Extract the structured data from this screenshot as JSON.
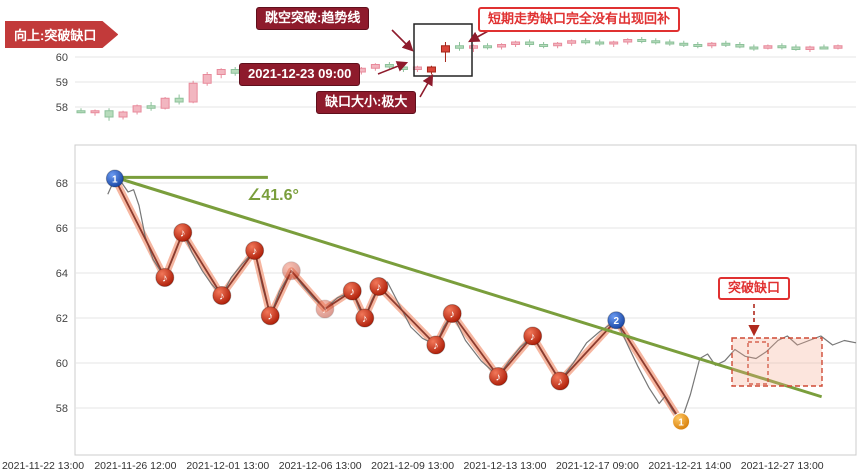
{
  "annotations": {
    "banner": "向上:突破缺口",
    "gap_breakout": "跳空突破:趋势线",
    "no_backfill": "短期走势缺口完全没有出现回补",
    "timestamp": "2021-12-23 09:00",
    "gap_size": "缺口大小:极大",
    "angle": "∠41.6°",
    "breakout": "突破缺口"
  },
  "colors": {
    "up_candle": "#f2b6c0",
    "up_candle_border": "#e88a9b",
    "down_candle": "#b7dcbc",
    "down_candle_border": "#8cc19a",
    "emphasis_candle": "#d9453a",
    "emphasis_border": "#a32317",
    "badge_dark_bg": "#8e1b2c",
    "badge_red": "#e03131",
    "banner_bg": "#c23a3a",
    "trend_green": "#7a9e3c",
    "zigzag_band": "#f5a98f",
    "zigzag_core": "#8c3b2e",
    "price_line": "#777777",
    "grid": "#e4e4e4",
    "axis_text": "#444444",
    "box_stroke": "#222222",
    "gap_zone_stroke": "#cf4a35",
    "gap_zone_fill": "rgba(245,169,143,0.3)"
  },
  "chart_data": [
    {
      "type": "candlestick",
      "title": "",
      "xlabel": "",
      "ylabel": "",
      "y_ticks": [
        60,
        59,
        58
      ],
      "ylim": [
        57.3,
        61.0
      ],
      "grid": true,
      "legend": false,
      "emphasis_candles": [
        25,
        26
      ],
      "candles": [
        [
          57.85,
          57.95,
          57.75,
          57.8
        ],
        [
          57.8,
          57.9,
          57.65,
          57.85
        ],
        [
          57.85,
          57.95,
          57.45,
          57.6
        ],
        [
          57.6,
          57.85,
          57.5,
          57.8
        ],
        [
          57.8,
          58.1,
          57.7,
          58.05
        ],
        [
          58.05,
          58.2,
          57.85,
          57.95
        ],
        [
          57.95,
          58.4,
          57.9,
          58.35
        ],
        [
          58.35,
          58.5,
          58.1,
          58.2
        ],
        [
          58.2,
          59.05,
          58.15,
          58.95
        ],
        [
          58.95,
          59.4,
          58.85,
          59.3
        ],
        [
          59.3,
          59.55,
          59.15,
          59.5
        ],
        [
          59.5,
          59.6,
          59.25,
          59.35
        ],
        [
          59.35,
          59.6,
          59.2,
          59.55
        ],
        [
          59.55,
          59.65,
          59.35,
          59.45
        ],
        [
          59.45,
          59.55,
          59.25,
          59.35
        ],
        [
          59.35,
          59.6,
          59.3,
          59.55
        ],
        [
          59.55,
          59.7,
          59.4,
          59.5
        ],
        [
          59.5,
          59.65,
          59.35,
          59.6
        ],
        [
          59.6,
          59.7,
          59.45,
          59.5
        ],
        [
          59.5,
          59.6,
          59.3,
          59.4
        ],
        [
          59.4,
          59.6,
          59.3,
          59.55
        ],
        [
          59.55,
          59.75,
          59.45,
          59.7
        ],
        [
          59.7,
          59.8,
          59.5,
          59.6
        ],
        [
          59.6,
          59.7,
          59.4,
          59.5
        ],
        [
          59.5,
          59.65,
          59.4,
          59.6
        ],
        [
          59.6,
          59.65,
          59.3,
          59.4
        ],
        [
          60.2,
          60.6,
          59.8,
          60.45
        ],
        [
          60.45,
          60.6,
          60.25,
          60.35
        ],
        [
          60.35,
          60.5,
          60.2,
          60.45
        ],
        [
          60.45,
          60.55,
          60.3,
          60.4
        ],
        [
          60.4,
          60.55,
          60.3,
          60.5
        ],
        [
          60.5,
          60.65,
          60.4,
          60.6
        ],
        [
          60.6,
          60.7,
          60.4,
          60.5
        ],
        [
          60.5,
          60.6,
          60.35,
          60.45
        ],
        [
          60.45,
          60.6,
          60.35,
          60.55
        ],
        [
          60.55,
          60.7,
          60.45,
          60.65
        ],
        [
          60.65,
          60.75,
          60.5,
          60.6
        ],
        [
          60.6,
          60.7,
          60.45,
          60.55
        ],
        [
          60.55,
          60.65,
          60.4,
          60.6
        ],
        [
          60.6,
          60.75,
          60.5,
          60.7
        ],
        [
          60.7,
          60.8,
          60.55,
          60.65
        ],
        [
          60.65,
          60.75,
          60.5,
          60.6
        ],
        [
          60.6,
          60.7,
          60.45,
          60.55
        ],
        [
          60.55,
          60.65,
          60.4,
          60.5
        ],
        [
          60.5,
          60.6,
          60.35,
          60.45
        ],
        [
          60.45,
          60.6,
          60.35,
          60.55
        ],
        [
          60.55,
          60.65,
          60.4,
          60.5
        ],
        [
          60.5,
          60.6,
          60.35,
          60.4
        ],
        [
          60.4,
          60.5,
          60.25,
          60.35
        ],
        [
          60.35,
          60.5,
          60.3,
          60.45
        ],
        [
          60.45,
          60.55,
          60.3,
          60.4
        ],
        [
          60.4,
          60.5,
          60.25,
          60.3
        ],
        [
          60.3,
          60.45,
          60.2,
          60.4
        ],
        [
          60.4,
          60.5,
          60.3,
          60.35
        ],
        [
          60.35,
          60.5,
          60.3,
          60.45
        ]
      ]
    },
    {
      "type": "line",
      "title": "",
      "xlabel": "",
      "ylabel": "",
      "y_ticks": [
        68,
        66,
        64,
        62,
        60,
        58
      ],
      "ylim": [
        56.5,
        69.7
      ],
      "grid": true,
      "legend": false,
      "x_ticks": [
        "2021-11-22 13:00",
        "2021-11-26 12:00",
        "2021-12-01 13:00",
        "2021-12-06 13:00",
        "2021-12-09 13:00",
        "2021-12-13 13:00",
        "2021-12-17 09:00",
        "2021-12-21 14:00",
        "2021-12-27 13:00"
      ],
      "price_line": [
        [
          0.042,
          67.5
        ],
        [
          0.051,
          68.2
        ],
        [
          0.06,
          68.0
        ],
        [
          0.068,
          67.6
        ],
        [
          0.075,
          67.7
        ],
        [
          0.082,
          67.0
        ],
        [
          0.09,
          65.6
        ],
        [
          0.1,
          64.6
        ],
        [
          0.115,
          63.8
        ],
        [
          0.126,
          64.7
        ],
        [
          0.138,
          65.8
        ],
        [
          0.15,
          64.9
        ],
        [
          0.163,
          64.1
        ],
        [
          0.175,
          63.5
        ],
        [
          0.188,
          63.0
        ],
        [
          0.2,
          63.8
        ],
        [
          0.214,
          64.4
        ],
        [
          0.23,
          65.0
        ],
        [
          0.24,
          63.4
        ],
        [
          0.25,
          62.1
        ],
        [
          0.262,
          63.2
        ],
        [
          0.277,
          64.1
        ],
        [
          0.29,
          63.5
        ],
        [
          0.305,
          62.9
        ],
        [
          0.32,
          62.4
        ],
        [
          0.336,
          62.9
        ],
        [
          0.355,
          63.2
        ],
        [
          0.364,
          62.4
        ],
        [
          0.371,
          62.0
        ],
        [
          0.38,
          62.8
        ],
        [
          0.389,
          63.4
        ],
        [
          0.4,
          63.6
        ],
        [
          0.415,
          62.6
        ],
        [
          0.43,
          61.6
        ],
        [
          0.445,
          61.1
        ],
        [
          0.462,
          60.8
        ],
        [
          0.472,
          61.6
        ],
        [
          0.483,
          62.2
        ],
        [
          0.5,
          61.0
        ],
        [
          0.52,
          60.1
        ],
        [
          0.542,
          59.4
        ],
        [
          0.556,
          60.1
        ],
        [
          0.57,
          60.7
        ],
        [
          0.586,
          61.2
        ],
        [
          0.603,
          60.2
        ],
        [
          0.621,
          59.2
        ],
        [
          0.638,
          60.0
        ],
        [
          0.655,
          60.9
        ],
        [
          0.672,
          61.4
        ],
        [
          0.693,
          61.9
        ],
        [
          0.705,
          61.0
        ],
        [
          0.72,
          59.9
        ],
        [
          0.735,
          58.9
        ],
        [
          0.748,
          58.2
        ],
        [
          0.755,
          58.5
        ],
        [
          0.765,
          57.9
        ],
        [
          0.776,
          57.4
        ],
        [
          0.788,
          58.6
        ],
        [
          0.8,
          60.2
        ],
        [
          0.81,
          60.4
        ],
        [
          0.82,
          59.9
        ],
        [
          0.832,
          60.1
        ],
        [
          0.845,
          60.6
        ],
        [
          0.858,
          60.3
        ],
        [
          0.872,
          60.2
        ],
        [
          0.885,
          60.5
        ],
        [
          0.9,
          61.0
        ],
        [
          0.912,
          61.2
        ],
        [
          0.925,
          60.8
        ],
        [
          0.94,
          61.0
        ],
        [
          0.955,
          61.2
        ],
        [
          0.97,
          60.8
        ],
        [
          0.985,
          61.0
        ],
        [
          1.0,
          60.9
        ]
      ],
      "zigzag": [
        {
          "t": 0.051,
          "p": 68.2,
          "marker": "blue",
          "label": "1"
        },
        {
          "t": 0.115,
          "p": 63.8,
          "marker": "red"
        },
        {
          "t": 0.138,
          "p": 65.8,
          "marker": "red"
        },
        {
          "t": 0.188,
          "p": 63.0,
          "marker": "red"
        },
        {
          "t": 0.23,
          "p": 65.0,
          "marker": "red"
        },
        {
          "t": 0.25,
          "p": 62.1,
          "marker": "red"
        },
        {
          "t": 0.277,
          "p": 64.1,
          "marker": "red",
          "faded": true
        },
        {
          "t": 0.32,
          "p": 62.4,
          "marker": "red",
          "faded": true
        },
        {
          "t": 0.355,
          "p": 63.2,
          "marker": "red"
        },
        {
          "t": 0.371,
          "p": 62.0,
          "marker": "red"
        },
        {
          "t": 0.389,
          "p": 63.4,
          "marker": "red"
        },
        {
          "t": 0.462,
          "p": 60.8,
          "marker": "red"
        },
        {
          "t": 0.483,
          "p": 62.2,
          "marker": "red"
        },
        {
          "t": 0.542,
          "p": 59.4,
          "marker": "red"
        },
        {
          "t": 0.586,
          "p": 61.2,
          "marker": "red"
        },
        {
          "t": 0.621,
          "p": 59.2,
          "marker": "red"
        },
        {
          "t": 0.693,
          "p": 61.9,
          "marker": "blue",
          "label": "2"
        },
        {
          "t": 0.776,
          "p": 57.4,
          "marker": "orange",
          "label": "1"
        }
      ],
      "trend_line": {
        "from": [
          0.047,
          68.3
        ],
        "to": [
          0.956,
          58.5
        ]
      },
      "horizontal_line": {
        "from": [
          0.051,
          68.25
        ],
        "to": [
          0.247,
          68.25
        ]
      },
      "angle_deg": 41.6
    }
  ]
}
